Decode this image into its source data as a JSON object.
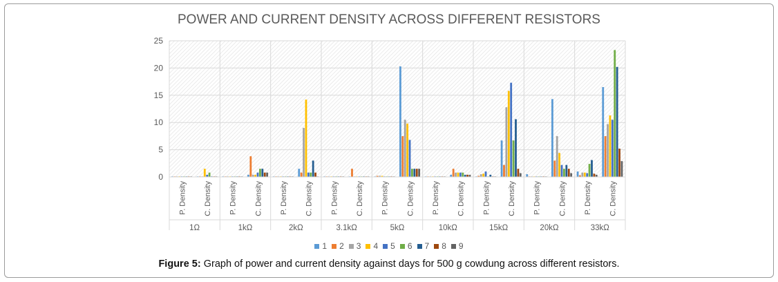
{
  "chart_data": {
    "type": "bar",
    "title": "POWER AND CURRENT DENSITY ACROSS DIFFERENT RESISTORS",
    "xlabel": "",
    "ylabel": "",
    "ylim": [
      0,
      25
    ],
    "yticks": [
      0,
      5,
      10,
      15,
      20,
      25
    ],
    "grid": true,
    "legend_position": "bottom",
    "groups": [
      "1Ω",
      "1kΩ",
      "2kΩ",
      "3.1kΩ",
      "5kΩ",
      "10kΩ",
      "15kΩ",
      "20kΩ",
      "33kΩ"
    ],
    "subcategories": [
      "P. Density",
      "C. Density"
    ],
    "series": [
      {
        "name": "1",
        "color": "#5b9bd5",
        "values": [
          [
            0.1,
            0.1
          ],
          [
            0.1,
            0.4
          ],
          [
            0.1,
            1.5
          ],
          [
            0.1,
            0.1
          ],
          [
            0.1,
            20.3
          ],
          [
            0.1,
            0.4
          ],
          [
            0.1,
            6.7
          ],
          [
            0.5,
            14.3
          ],
          [
            1.0,
            16.5
          ]
        ]
      },
      {
        "name": "2",
        "color": "#ed7d31",
        "values": [
          [
            0.1,
            0.1
          ],
          [
            0.1,
            3.8
          ],
          [
            0.1,
            0.8
          ],
          [
            0.1,
            1.5
          ],
          [
            0.2,
            7.5
          ],
          [
            0.1,
            1.5
          ],
          [
            0.2,
            2.2
          ],
          [
            0.1,
            3.0
          ],
          [
            0.3,
            7.5
          ]
        ]
      },
      {
        "name": "3",
        "color": "#a5a5a5",
        "values": [
          [
            0.1,
            0.1
          ],
          [
            0.1,
            0.4
          ],
          [
            0.1,
            9.0
          ],
          [
            0.1,
            0.1
          ],
          [
            0.2,
            10.5
          ],
          [
            0.1,
            0.8
          ],
          [
            0.5,
            12.8
          ],
          [
            0.1,
            7.5
          ],
          [
            0.8,
            9.7
          ]
        ]
      },
      {
        "name": "4",
        "color": "#ffc000",
        "values": [
          [
            0.1,
            1.5
          ],
          [
            0.1,
            0.4
          ],
          [
            0.1,
            14.2
          ],
          [
            0.1,
            0.1
          ],
          [
            0.2,
            9.8
          ],
          [
            0.1,
            0.8
          ],
          [
            0.6,
            15.8
          ],
          [
            0.1,
            4.4
          ],
          [
            0.8,
            11.3
          ]
        ]
      },
      {
        "name": "5",
        "color": "#4472c4",
        "values": [
          [
            0.1,
            0.4
          ],
          [
            0.1,
            0.8
          ],
          [
            0.1,
            0.8
          ],
          [
            0.1,
            0.1
          ],
          [
            0.1,
            6.8
          ],
          [
            0.1,
            0.8
          ],
          [
            1.0,
            17.3
          ],
          [
            0.1,
            2.2
          ],
          [
            0.7,
            10.5
          ]
        ]
      },
      {
        "name": "6",
        "color": "#70ad47",
        "values": [
          [
            0.1,
            0.8
          ],
          [
            0.1,
            1.5
          ],
          [
            0.1,
            0.8
          ],
          [
            0.1,
            0.1
          ],
          [
            0.1,
            1.5
          ],
          [
            0.1,
            0.8
          ],
          [
            0.1,
            6.7
          ],
          [
            0.1,
            1.5
          ],
          [
            2.4,
            23.3
          ]
        ]
      },
      {
        "name": "7",
        "color": "#255e91",
        "values": [
          [
            0.1,
            0.1
          ],
          [
            0.1,
            1.5
          ],
          [
            0.1,
            3.0
          ],
          [
            0.1,
            0.1
          ],
          [
            0.1,
            1.5
          ],
          [
            0.1,
            0.4
          ],
          [
            0.4,
            10.6
          ],
          [
            0.1,
            2.2
          ],
          [
            3.1,
            20.2
          ]
        ]
      },
      {
        "name": "8",
        "color": "#9e480e",
        "values": [
          [
            0.1,
            0.1
          ],
          [
            0.1,
            0.8
          ],
          [
            0.1,
            0.8
          ],
          [
            0.1,
            0.1
          ],
          [
            0.1,
            1.5
          ],
          [
            0.1,
            0.4
          ],
          [
            0.1,
            1.5
          ],
          [
            0.1,
            1.5
          ],
          [
            0.6,
            5.2
          ]
        ]
      },
      {
        "name": "9",
        "color": "#636363",
        "values": [
          [
            0.1,
            0.1
          ],
          [
            0.1,
            0.8
          ],
          [
            0.1,
            0.1
          ],
          [
            0.1,
            0.1
          ],
          [
            0.1,
            1.5
          ],
          [
            0.1,
            0.4
          ],
          [
            0.1,
            0.7
          ],
          [
            0.1,
            0.7
          ],
          [
            0.4,
            2.9
          ]
        ]
      }
    ]
  },
  "caption": {
    "label": "Figure 5:",
    "text": " Graph of power and current density against days for 500 g cowdung across different resistors."
  }
}
